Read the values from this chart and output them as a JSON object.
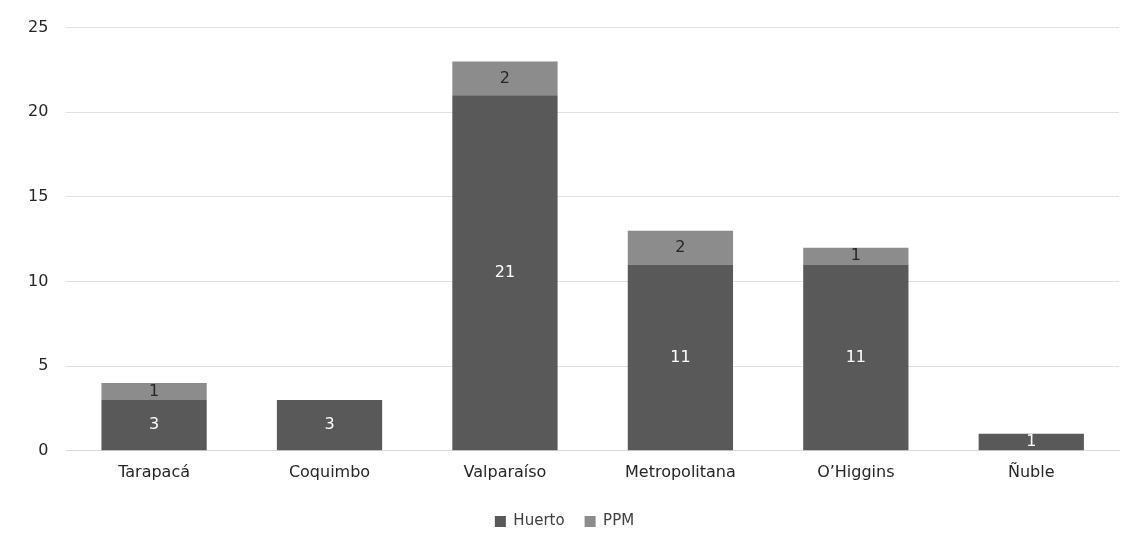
{
  "chart_data": {
    "type": "bar",
    "stacked": true,
    "categories": [
      "Tarapacá",
      "Coquimbo",
      "Valparaíso",
      "Metropolitana",
      "O’Higgins",
      "Ñuble"
    ],
    "series": [
      {
        "name": "Huerto",
        "color": "#595959",
        "values": [
          3,
          3,
          21,
          11,
          11,
          1
        ]
      },
      {
        "name": "PPM",
        "color": "#8c8c8c",
        "values": [
          1,
          null,
          2,
          2,
          1,
          null
        ]
      }
    ],
    "ylim": [
      0,
      25
    ],
    "yticks": [
      0,
      5,
      10,
      15,
      20,
      25
    ],
    "grid": "y",
    "legend": "bottom",
    "data_labels": true
  }
}
